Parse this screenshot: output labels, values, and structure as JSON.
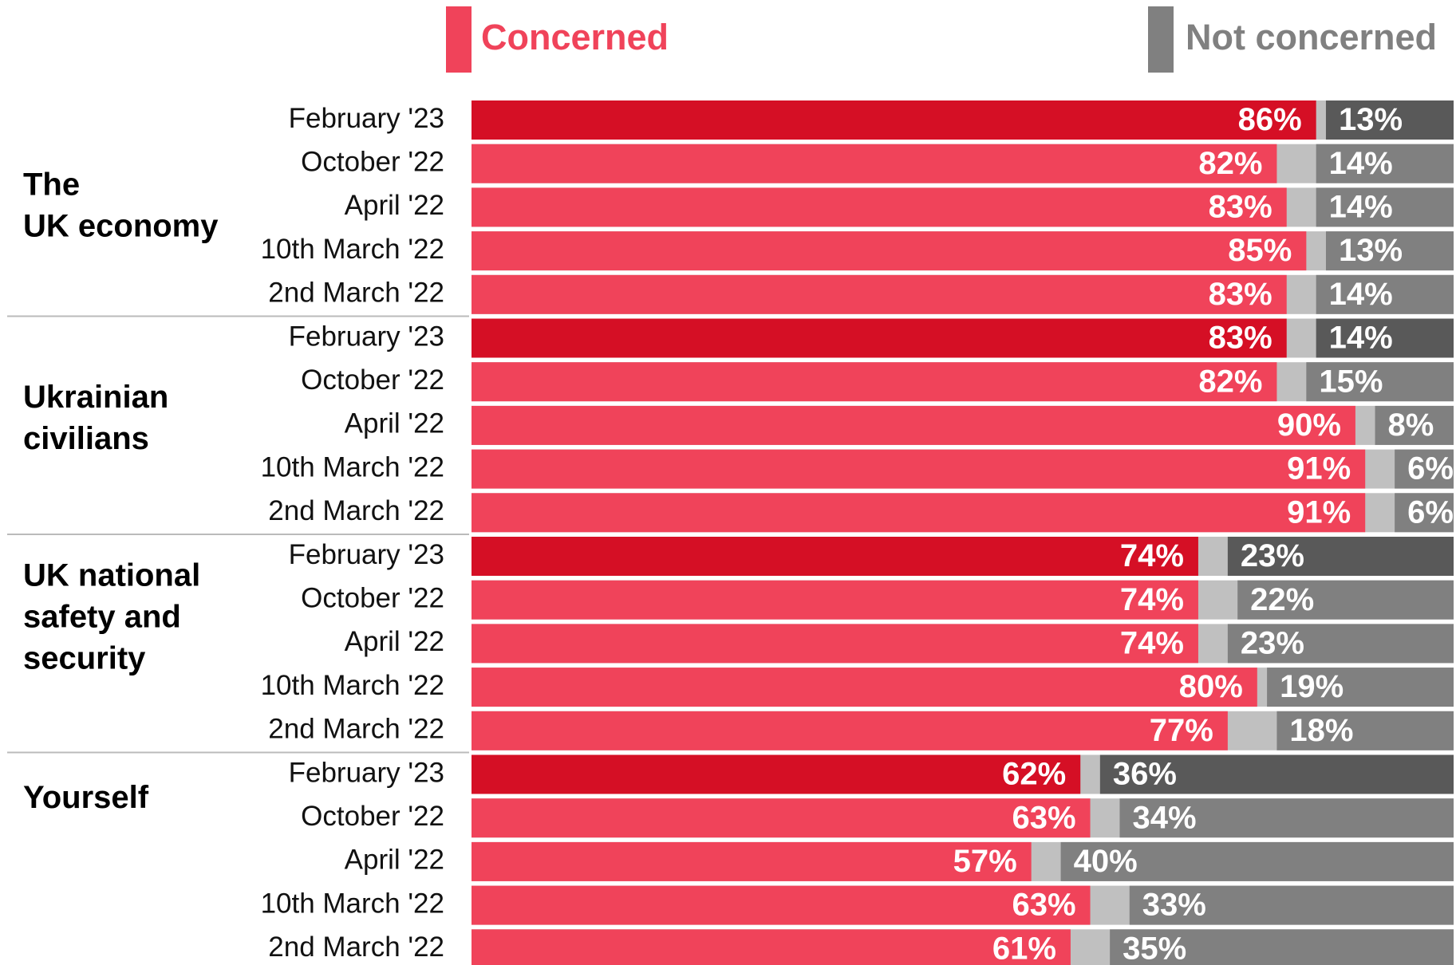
{
  "chart_data": {
    "type": "bar",
    "orientation": "horizontal",
    "stacked": true,
    "xlim": [
      0,
      100
    ],
    "legend": "top",
    "highlight": "February '23",
    "series": [
      {
        "name": "Concerned",
        "color": "#f0435a",
        "highlight_color": "#d50f25",
        "anchor": "left",
        "values": [
          [
            86,
            82,
            83,
            85,
            83
          ],
          [
            83,
            82,
            90,
            91,
            91
          ],
          [
            74,
            74,
            74,
            80,
            77
          ],
          [
            62,
            63,
            57,
            63,
            61
          ]
        ],
        "value_labels": [
          [
            "86%",
            "82%",
            "83%",
            "85%",
            "83%"
          ],
          [
            "83%",
            "82%",
            "90%",
            "91%",
            "91%"
          ],
          [
            "74%",
            "74%",
            "74%",
            "80%",
            "77%"
          ],
          [
            "62%",
            "63%",
            "57%",
            "63%",
            "61%"
          ]
        ]
      },
      {
        "name": "Not concerned",
        "color": "#808080",
        "highlight_color": "#595959",
        "anchor": "right",
        "values": [
          [
            13,
            14,
            14,
            13,
            14
          ],
          [
            14,
            15,
            8,
            6,
            6
          ],
          [
            23,
            22,
            23,
            19,
            18
          ],
          [
            36,
            34,
            40,
            33,
            35
          ]
        ],
        "value_labels": [
          [
            "13%",
            "14%",
            "14%",
            "13%",
            "14%"
          ],
          [
            "14%",
            "15%",
            "8%",
            "6%",
            "6%"
          ],
          [
            "23%",
            "22%",
            "23%",
            "19%",
            "18%"
          ],
          [
            "36%",
            "34%",
            "40%",
            "33%",
            "35%"
          ]
        ]
      }
    ],
    "groups": [
      {
        "name": [
          "The",
          "UK economy"
        ],
        "categories": [
          "February '23",
          "October '22",
          "April '22",
          "10th March '22",
          "2nd March '22"
        ]
      },
      {
        "name": [
          "Ukrainian",
          "civilians"
        ],
        "categories": [
          "February '23",
          "October '22",
          "April '22",
          "10th March '22",
          "2nd March '22"
        ]
      },
      {
        "name": [
          "UK national",
          "safety and",
          "security"
        ],
        "categories": [
          "February '23",
          "October '22",
          "April '22",
          "10th March '22",
          "2nd March '22"
        ]
      },
      {
        "name": [
          "Yourself"
        ],
        "categories": [
          "February '23",
          "October '22",
          "April '22",
          "10th March '22",
          "2nd March '22"
        ]
      }
    ]
  }
}
